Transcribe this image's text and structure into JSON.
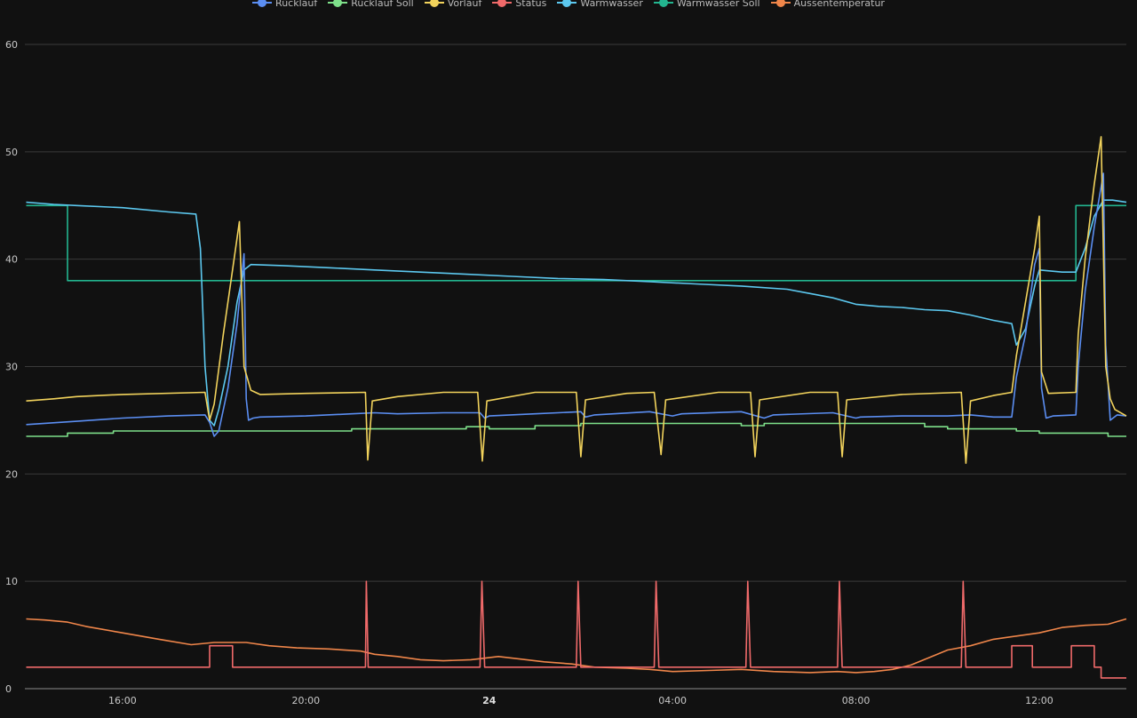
{
  "chart_data": {
    "type": "line",
    "title": "",
    "xlabel": "",
    "ylabel": "",
    "ylim": [
      0,
      60
    ],
    "grid": true,
    "legend_position": "top-center",
    "y_ticks": [
      "0",
      "10",
      "20",
      "30",
      "40",
      "50",
      "60"
    ],
    "x_ticks": [
      {
        "t": 16,
        "label": "16:00",
        "bold": false
      },
      {
        "t": 20,
        "label": "20:00",
        "bold": false
      },
      {
        "t": 24,
        "label": "24",
        "bold": true
      },
      {
        "t": 28,
        "label": "04:00",
        "bold": false
      },
      {
        "t": 32,
        "label": "08:00",
        "bold": false
      },
      {
        "t": 36,
        "label": "12:00",
        "bold": false
      }
    ],
    "x_range_hours": [
      13.87,
      37.9
    ],
    "series": [
      {
        "name": "Rücklauf",
        "color": "#5b8ef2",
        "points": [
          [
            13.9,
            24.6
          ],
          [
            15.0,
            24.9
          ],
          [
            16.0,
            25.2
          ],
          [
            17.0,
            25.4
          ],
          [
            17.8,
            25.5
          ],
          [
            17.9,
            24.8
          ],
          [
            18.0,
            23.5
          ],
          [
            18.1,
            24.0
          ],
          [
            18.3,
            28.0
          ],
          [
            18.5,
            34.0
          ],
          [
            18.65,
            40.5
          ],
          [
            18.7,
            27.0
          ],
          [
            18.75,
            25.0
          ],
          [
            18.85,
            25.2
          ],
          [
            19.0,
            25.3
          ],
          [
            20.0,
            25.4
          ],
          [
            21.0,
            25.6
          ],
          [
            21.5,
            25.7
          ],
          [
            22.0,
            25.6
          ],
          [
            23.0,
            25.7
          ],
          [
            23.8,
            25.7
          ],
          [
            23.9,
            25.2
          ],
          [
            24.0,
            25.4
          ],
          [
            25.0,
            25.6
          ],
          [
            26.0,
            25.8
          ],
          [
            26.1,
            25.3
          ],
          [
            26.3,
            25.5
          ],
          [
            27.5,
            25.8
          ],
          [
            28.0,
            25.4
          ],
          [
            28.2,
            25.6
          ],
          [
            29.5,
            25.8
          ],
          [
            30.0,
            25.2
          ],
          [
            30.2,
            25.5
          ],
          [
            31.5,
            25.7
          ],
          [
            32.0,
            25.2
          ],
          [
            32.1,
            25.3
          ],
          [
            33.0,
            25.4
          ],
          [
            34.0,
            25.4
          ],
          [
            34.5,
            25.5
          ],
          [
            35.0,
            25.3
          ],
          [
            35.4,
            25.3
          ],
          [
            35.5,
            29.0
          ],
          [
            35.7,
            33.0
          ],
          [
            35.9,
            39.5
          ],
          [
            36.0,
            41.0
          ],
          [
            36.05,
            28.0
          ],
          [
            36.15,
            25.2
          ],
          [
            36.3,
            25.4
          ],
          [
            36.8,
            25.5
          ],
          [
            36.85,
            30.0
          ],
          [
            37.0,
            37.0
          ],
          [
            37.2,
            43.0
          ],
          [
            37.4,
            48.0
          ],
          [
            37.45,
            32.0
          ],
          [
            37.55,
            25.0
          ],
          [
            37.7,
            25.5
          ],
          [
            37.9,
            25.4
          ]
        ]
      },
      {
        "name": "Rücklauf Soll",
        "color": "#7ee08a",
        "points": [
          [
            13.9,
            23.5
          ],
          [
            14.8,
            23.5
          ],
          [
            14.8,
            23.8
          ],
          [
            15.8,
            23.8
          ],
          [
            15.8,
            24.0
          ],
          [
            21.0,
            24.0
          ],
          [
            21.0,
            24.2
          ],
          [
            23.5,
            24.2
          ],
          [
            23.5,
            24.4
          ],
          [
            24.0,
            24.4
          ],
          [
            24.0,
            24.2
          ],
          [
            25.0,
            24.2
          ],
          [
            25.0,
            24.5
          ],
          [
            26.0,
            24.5
          ],
          [
            26.0,
            24.7
          ],
          [
            29.5,
            24.7
          ],
          [
            29.5,
            24.5
          ],
          [
            30.0,
            24.5
          ],
          [
            30.0,
            24.7
          ],
          [
            33.5,
            24.7
          ],
          [
            33.5,
            24.4
          ],
          [
            34.0,
            24.4
          ],
          [
            34.0,
            24.2
          ],
          [
            35.5,
            24.2
          ],
          [
            35.5,
            24.0
          ],
          [
            36.0,
            24.0
          ],
          [
            36.0,
            23.8
          ],
          [
            37.5,
            23.8
          ],
          [
            37.5,
            23.5
          ],
          [
            37.9,
            23.5
          ]
        ]
      },
      {
        "name": "Vorlauf",
        "color": "#f2d35c",
        "points": [
          [
            13.9,
            26.8
          ],
          [
            14.5,
            27.0
          ],
          [
            15.0,
            27.2
          ],
          [
            16.0,
            27.4
          ],
          [
            17.8,
            27.6
          ],
          [
            17.9,
            25.0
          ],
          [
            18.0,
            26.5
          ],
          [
            18.2,
            33.0
          ],
          [
            18.4,
            39.0
          ],
          [
            18.55,
            43.5
          ],
          [
            18.65,
            30.0
          ],
          [
            18.8,
            27.8
          ],
          [
            19.0,
            27.4
          ],
          [
            20.0,
            27.5
          ],
          [
            21.3,
            27.6
          ],
          [
            21.35,
            21.3
          ],
          [
            21.45,
            26.8
          ],
          [
            22.0,
            27.2
          ],
          [
            23.0,
            27.6
          ],
          [
            23.75,
            27.6
          ],
          [
            23.85,
            21.2
          ],
          [
            23.95,
            26.8
          ],
          [
            25.0,
            27.6
          ],
          [
            25.9,
            27.6
          ],
          [
            26.0,
            21.6
          ],
          [
            26.1,
            26.9
          ],
          [
            27.0,
            27.5
          ],
          [
            27.6,
            27.6
          ],
          [
            27.75,
            21.8
          ],
          [
            27.85,
            26.9
          ],
          [
            29.0,
            27.6
          ],
          [
            29.7,
            27.6
          ],
          [
            29.8,
            21.6
          ],
          [
            29.9,
            26.9
          ],
          [
            31.0,
            27.6
          ],
          [
            31.6,
            27.6
          ],
          [
            31.7,
            21.6
          ],
          [
            31.8,
            26.9
          ],
          [
            33.0,
            27.4
          ],
          [
            34.3,
            27.6
          ],
          [
            34.4,
            21.0
          ],
          [
            34.5,
            26.8
          ],
          [
            35.0,
            27.3
          ],
          [
            35.4,
            27.6
          ],
          [
            35.5,
            31.0
          ],
          [
            35.7,
            36.0
          ],
          [
            35.9,
            41.0
          ],
          [
            36.0,
            44.0
          ],
          [
            36.05,
            29.5
          ],
          [
            36.2,
            27.5
          ],
          [
            36.8,
            27.6
          ],
          [
            36.85,
            33.0
          ],
          [
            37.0,
            40.0
          ],
          [
            37.2,
            47.0
          ],
          [
            37.35,
            51.4
          ],
          [
            37.45,
            30.0
          ],
          [
            37.55,
            27.0
          ],
          [
            37.65,
            26.0
          ],
          [
            37.9,
            25.4
          ]
        ]
      },
      {
        "name": "Status",
        "color": "#f06a6a",
        "points": [
          [
            13.9,
            2
          ],
          [
            17.9,
            2
          ],
          [
            17.9,
            4
          ],
          [
            18.4,
            4
          ],
          [
            18.4,
            2
          ],
          [
            21.3,
            2
          ],
          [
            21.32,
            10
          ],
          [
            21.36,
            2
          ],
          [
            23.8,
            2
          ],
          [
            23.84,
            10
          ],
          [
            23.9,
            2
          ],
          [
            25.9,
            2
          ],
          [
            25.94,
            10
          ],
          [
            26.0,
            2
          ],
          [
            27.6,
            2
          ],
          [
            27.64,
            10
          ],
          [
            27.7,
            2
          ],
          [
            29.6,
            2
          ],
          [
            29.64,
            10
          ],
          [
            29.7,
            2
          ],
          [
            31.6,
            2
          ],
          [
            31.64,
            10
          ],
          [
            31.7,
            2
          ],
          [
            34.3,
            2
          ],
          [
            34.34,
            10
          ],
          [
            34.4,
            2
          ],
          [
            35.4,
            2
          ],
          [
            35.4,
            4
          ],
          [
            35.85,
            4
          ],
          [
            35.85,
            2
          ],
          [
            36.7,
            2
          ],
          [
            36.7,
            4
          ],
          [
            37.2,
            4
          ],
          [
            37.2,
            2
          ],
          [
            37.35,
            2
          ],
          [
            37.35,
            1
          ],
          [
            37.9,
            1
          ]
        ]
      },
      {
        "name": "Warmwasser",
        "color": "#5cc8ef",
        "points": [
          [
            13.9,
            45.3
          ],
          [
            14.5,
            45.1
          ],
          [
            15.0,
            45.0
          ],
          [
            16.0,
            44.8
          ],
          [
            17.0,
            44.4
          ],
          [
            17.6,
            44.2
          ],
          [
            17.7,
            41.0
          ],
          [
            17.8,
            30.0
          ],
          [
            17.9,
            25.0
          ],
          [
            18.0,
            24.5
          ],
          [
            18.1,
            26.0
          ],
          [
            18.3,
            30.0
          ],
          [
            18.5,
            36.0
          ],
          [
            18.65,
            39.0
          ],
          [
            18.8,
            39.5
          ],
          [
            19.5,
            39.4
          ],
          [
            20.5,
            39.2
          ],
          [
            21.5,
            39.0
          ],
          [
            22.5,
            38.8
          ],
          [
            23.5,
            38.6
          ],
          [
            24.5,
            38.4
          ],
          [
            25.5,
            38.2
          ],
          [
            26.5,
            38.1
          ],
          [
            27.5,
            37.9
          ],
          [
            28.5,
            37.7
          ],
          [
            29.5,
            37.5
          ],
          [
            30.5,
            37.2
          ],
          [
            31.0,
            36.8
          ],
          [
            31.5,
            36.4
          ],
          [
            32.0,
            35.8
          ],
          [
            32.5,
            35.6
          ],
          [
            33.0,
            35.5
          ],
          [
            33.5,
            35.3
          ],
          [
            34.0,
            35.2
          ],
          [
            34.5,
            34.8
          ],
          [
            35.0,
            34.3
          ],
          [
            35.4,
            34.0
          ],
          [
            35.5,
            32.0
          ],
          [
            35.7,
            33.5
          ],
          [
            35.9,
            37.5
          ],
          [
            36.0,
            39.0
          ],
          [
            36.5,
            38.8
          ],
          [
            36.8,
            38.8
          ],
          [
            37.0,
            41.0
          ],
          [
            37.2,
            44.0
          ],
          [
            37.4,
            45.5
          ],
          [
            37.6,
            45.5
          ],
          [
            37.9,
            45.3
          ]
        ]
      },
      {
        "name": "Warmwasser Soll",
        "color": "#23b58f",
        "points": [
          [
            13.9,
            45
          ],
          [
            14.8,
            45
          ],
          [
            14.8,
            38
          ],
          [
            36.8,
            38
          ],
          [
            36.8,
            45
          ],
          [
            37.9,
            45
          ]
        ]
      },
      {
        "name": "Aussentemperatur",
        "color": "#f0864a",
        "points": [
          [
            13.9,
            6.5
          ],
          [
            14.3,
            6.4
          ],
          [
            14.8,
            6.2
          ],
          [
            15.2,
            5.8
          ],
          [
            16.0,
            5.2
          ],
          [
            16.8,
            4.6
          ],
          [
            17.5,
            4.1
          ],
          [
            18.0,
            4.3
          ],
          [
            18.7,
            4.3
          ],
          [
            19.2,
            4.0
          ],
          [
            19.8,
            3.8
          ],
          [
            20.5,
            3.7
          ],
          [
            21.2,
            3.5
          ],
          [
            21.5,
            3.2
          ],
          [
            22.0,
            3.0
          ],
          [
            22.5,
            2.7
          ],
          [
            23.0,
            2.6
          ],
          [
            23.6,
            2.7
          ],
          [
            24.2,
            3.0
          ],
          [
            24.6,
            2.8
          ],
          [
            25.2,
            2.5
          ],
          [
            25.8,
            2.3
          ],
          [
            26.3,
            2.0
          ],
          [
            27.0,
            1.9
          ],
          [
            27.5,
            1.8
          ],
          [
            28.0,
            1.6
          ],
          [
            28.8,
            1.7
          ],
          [
            29.5,
            1.8
          ],
          [
            30.2,
            1.6
          ],
          [
            31.0,
            1.5
          ],
          [
            31.6,
            1.6
          ],
          [
            32.0,
            1.5
          ],
          [
            32.4,
            1.6
          ],
          [
            32.8,
            1.8
          ],
          [
            33.2,
            2.2
          ],
          [
            33.6,
            2.9
          ],
          [
            34.0,
            3.6
          ],
          [
            34.5,
            4.0
          ],
          [
            35.0,
            4.6
          ],
          [
            35.5,
            4.9
          ],
          [
            36.0,
            5.2
          ],
          [
            36.5,
            5.7
          ],
          [
            37.0,
            5.9
          ],
          [
            37.5,
            6.0
          ],
          [
            37.9,
            6.5
          ]
        ]
      }
    ]
  }
}
